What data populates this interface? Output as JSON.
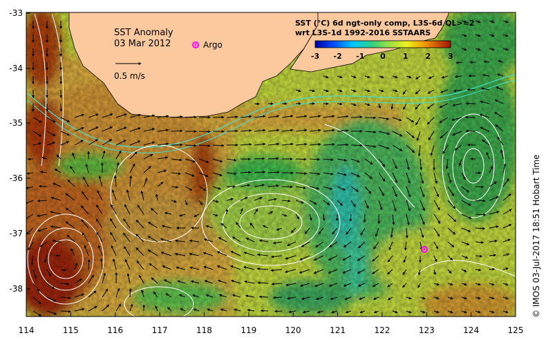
{
  "map": {
    "title": "SST Anomaly",
    "date": "03 Mar 2012",
    "scale_arrow_label": "0.5 m/s",
    "argo_label": "Argo",
    "legend_line1": "SST (°C) 6d ngt-only comp, L3S-6d QL>=2",
    "legend_line2": "wrt L3S-1d 1992-2016 SSTAARS",
    "credit": "©  IMOS 03-Jul-2017 18:51 Hobart Time",
    "x_ticks": [
      "114",
      "115",
      "116",
      "117",
      "118",
      "119",
      "120",
      "121",
      "122",
      "123",
      "124",
      "125"
    ],
    "y_ticks": [
      "-33",
      "-34",
      "-35",
      "-36",
      "-37",
      "-38"
    ],
    "colorbar_ticks": [
      "-3",
      "-2",
      "-1",
      "0",
      "1",
      "2",
      "3"
    ],
    "colors": {
      "land": "#fbc99d",
      "argo": "#ff00ff",
      "contour": "#ffffff",
      "shelf": "#40e0d0"
    }
  }
}
